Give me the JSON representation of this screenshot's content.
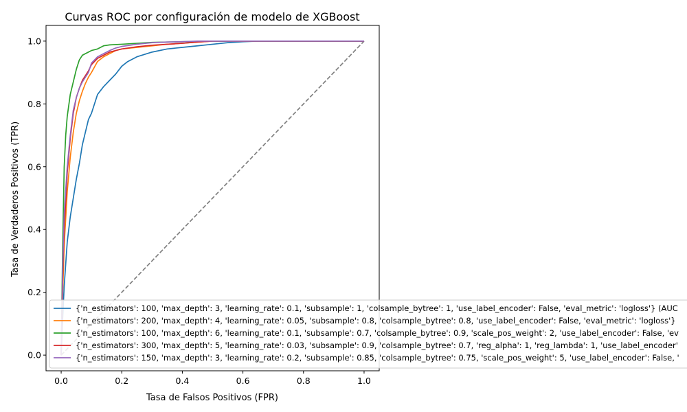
{
  "chart_data": {
    "type": "line",
    "title": "Curvas ROC por configuración de modelo de XGBoost",
    "xlabel": "Tasa de Falsos Positivos (FPR)",
    "ylabel": "Tasa de Verdaderos Positivos (TPR)",
    "xlim": [
      -0.05,
      1.05
    ],
    "ylim": [
      -0.05,
      1.05
    ],
    "xticks": [
      "0.0",
      "0.2",
      "0.4",
      "0.6",
      "0.8",
      "1.0"
    ],
    "yticks": [
      "0.0",
      "0.2",
      "0.4",
      "0.6",
      "0.8",
      "1.0"
    ],
    "grid": false,
    "legend_position": "lower-left, extending past right edge",
    "diagonal": {
      "x": [
        0,
        1
      ],
      "y": [
        0,
        1
      ],
      "color": "#808080",
      "style": "dashed"
    },
    "series": [
      {
        "name": "{'n_estimators': 100, 'max_depth': 3, 'learning_rate': 0.1, 'subsample': 1, 'colsample_bytree': 1, 'use_label_encoder': False, 'eval_metric': 'logloss'} (AUC",
        "color": "#1f77b4",
        "x": [
          0,
          0.005,
          0.01,
          0.02,
          0.03,
          0.04,
          0.05,
          0.06,
          0.07,
          0.08,
          0.09,
          0.1,
          0.12,
          0.14,
          0.16,
          0.18,
          0.2,
          0.22,
          0.25,
          0.3,
          0.35,
          0.4,
          0.45,
          0.5,
          0.55,
          0.6,
          0.65,
          0.7,
          1.0
        ],
        "y": [
          0,
          0.12,
          0.22,
          0.36,
          0.44,
          0.5,
          0.56,
          0.61,
          0.67,
          0.71,
          0.75,
          0.77,
          0.83,
          0.855,
          0.875,
          0.895,
          0.92,
          0.935,
          0.95,
          0.965,
          0.975,
          0.98,
          0.985,
          0.99,
          0.995,
          0.998,
          1.0,
          1.0,
          1.0
        ]
      },
      {
        "name": "{'n_estimators': 200, 'max_depth': 4, 'learning_rate': 0.05, 'subsample': 0.8, 'colsample_bytree': 0.8, 'use_label_encoder': False, 'eval_metric': 'logloss'}",
        "color": "#ff7f0e",
        "x": [
          0,
          0.005,
          0.01,
          0.02,
          0.03,
          0.04,
          0.05,
          0.06,
          0.07,
          0.08,
          0.09,
          0.1,
          0.12,
          0.14,
          0.16,
          0.18,
          0.2,
          0.25,
          0.3,
          0.35,
          0.4,
          0.45,
          0.5,
          1.0
        ],
        "y": [
          0,
          0.2,
          0.35,
          0.52,
          0.63,
          0.71,
          0.77,
          0.81,
          0.84,
          0.865,
          0.885,
          0.9,
          0.935,
          0.95,
          0.96,
          0.97,
          0.975,
          0.98,
          0.985,
          0.99,
          0.993,
          0.997,
          1.0,
          1.0
        ]
      },
      {
        "name": "{'n_estimators': 100, 'max_depth': 6, 'learning_rate': 0.1, 'subsample': 0.7, 'colsample_bytree': 0.9, 'scale_pos_weight': 2, 'use_label_encoder': False, 'ev",
        "color": "#2ca02c",
        "x": [
          0,
          0.005,
          0.01,
          0.015,
          0.02,
          0.03,
          0.04,
          0.05,
          0.06,
          0.07,
          0.08,
          0.09,
          0.1,
          0.12,
          0.14,
          0.16,
          0.2,
          0.25,
          0.3,
          0.4,
          0.5,
          1.0
        ],
        "y": [
          0,
          0.35,
          0.6,
          0.7,
          0.76,
          0.83,
          0.87,
          0.91,
          0.94,
          0.955,
          0.96,
          0.965,
          0.97,
          0.975,
          0.985,
          0.988,
          0.99,
          0.993,
          0.996,
          0.998,
          1.0,
          1.0
        ]
      },
      {
        "name": "{'n_estimators': 300, 'max_depth': 5, 'learning_rate': 0.03, 'subsample': 0.9, 'colsample_bytree': 0.7, 'reg_alpha': 1, 'reg_lambda': 1, 'use_label_encoder'",
        "color": "#d62728",
        "x": [
          0,
          0.005,
          0.01,
          0.02,
          0.03,
          0.04,
          0.05,
          0.06,
          0.07,
          0.08,
          0.09,
          0.1,
          0.12,
          0.14,
          0.16,
          0.18,
          0.2,
          0.25,
          0.3,
          0.35,
          0.4,
          0.45,
          0.5,
          1.0
        ],
        "y": [
          0,
          0.25,
          0.4,
          0.58,
          0.69,
          0.77,
          0.82,
          0.85,
          0.875,
          0.89,
          0.905,
          0.925,
          0.945,
          0.955,
          0.965,
          0.97,
          0.975,
          0.982,
          0.987,
          0.99,
          0.993,
          0.997,
          1.0,
          1.0
        ]
      },
      {
        "name": "{'n_estimators': 150, 'max_depth': 3, 'learning_rate': 0.2, 'subsample': 0.85, 'colsample_bytree': 0.75, 'scale_pos_weight': 5, 'use_label_encoder': False, '",
        "color": "#9467bd",
        "x": [
          0,
          0.005,
          0.01,
          0.02,
          0.03,
          0.04,
          0.05,
          0.06,
          0.07,
          0.08,
          0.09,
          0.1,
          0.12,
          0.14,
          0.16,
          0.18,
          0.2,
          0.25,
          0.3,
          0.35,
          0.4,
          0.45,
          0.5,
          1.0
        ],
        "y": [
          0,
          0.28,
          0.45,
          0.6,
          0.7,
          0.78,
          0.82,
          0.85,
          0.87,
          0.885,
          0.9,
          0.93,
          0.95,
          0.96,
          0.97,
          0.978,
          0.983,
          0.99,
          0.995,
          0.997,
          0.998,
          1.0,
          1.0,
          1.0
        ]
      }
    ]
  }
}
